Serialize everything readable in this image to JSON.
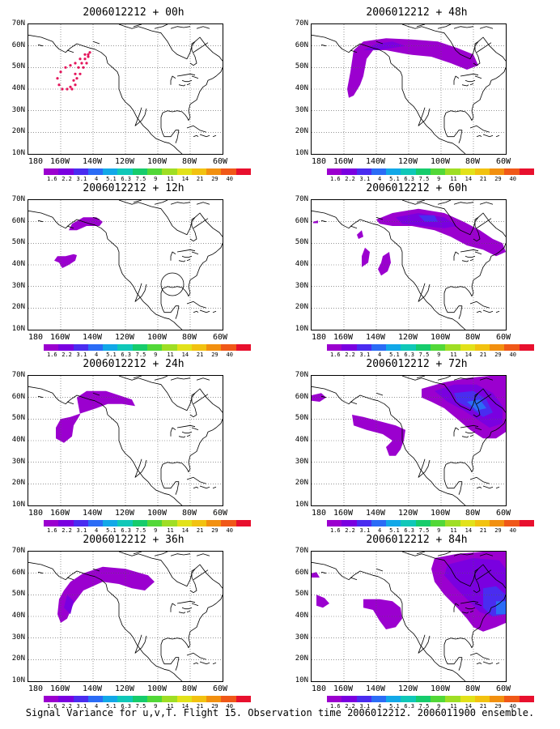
{
  "panels": [
    {
      "title": "2006012212 + 00h",
      "lead": "00h"
    },
    {
      "title": "2006012212 + 48h",
      "lead": "48h"
    },
    {
      "title": "2006012212 + 12h",
      "lead": "12h"
    },
    {
      "title": "2006012212 + 60h",
      "lead": "60h"
    },
    {
      "title": "2006012212 + 24h",
      "lead": "24h"
    },
    {
      "title": "2006012212 + 72h",
      "lead": "72h"
    },
    {
      "title": "2006012212 + 36h",
      "lead": "36h"
    },
    {
      "title": "2006012212 + 84h",
      "lead": "84h"
    }
  ],
  "lat_labels": [
    "70N",
    "60N",
    "50N",
    "40N",
    "30N",
    "20N",
    "10N"
  ],
  "lon_labels": [
    "180",
    "160W",
    "140W",
    "120W",
    "100W",
    "80W",
    "60W"
  ],
  "colorbar": {
    "labels": [
      "1.6",
      "2.2",
      "3.1",
      "4",
      "5.1",
      "6.3",
      "7.5",
      "9",
      "11",
      "14",
      "21",
      "29",
      "40"
    ],
    "colors": [
      "#9b00cf",
      "#7a00e0",
      "#4a2cf0",
      "#2b6cf6",
      "#12a8e8",
      "#10c8b8",
      "#16cc6c",
      "#52d838",
      "#9fde24",
      "#e2e21a",
      "#f2c210",
      "#f29010",
      "#f05818",
      "#e8102e"
    ]
  },
  "caption": "Signal Variance for u,v,T. Flight 15. Observation time 2006012212. 2006011900 ensemble."
}
